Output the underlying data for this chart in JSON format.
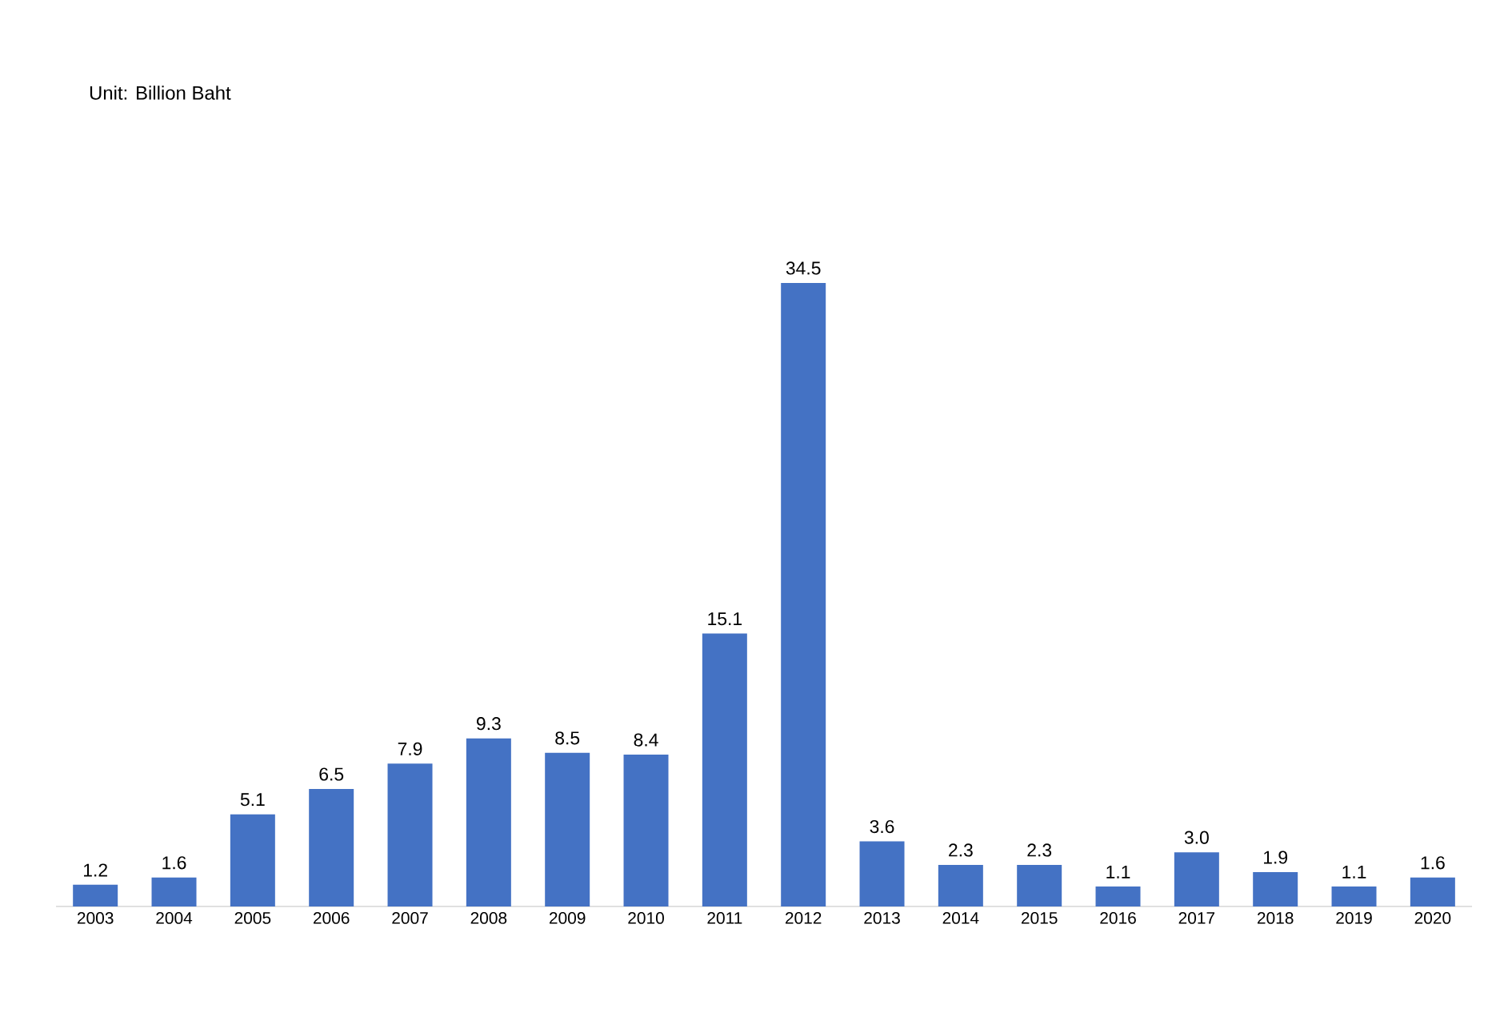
{
  "chart_data": {
    "type": "bar",
    "annotations": [
      "Unit: Billion Baht"
    ],
    "categories": [
      "2003",
      "2004",
      "2005",
      "2006",
      "2007",
      "2008",
      "2009",
      "2010",
      "2011",
      "2012",
      "2013",
      "2014",
      "2015",
      "2016",
      "2017",
      "2018",
      "2019",
      "2020"
    ],
    "values": [
      1.2,
      1.6,
      5.1,
      6.5,
      7.9,
      9.3,
      8.5,
      8.4,
      15.1,
      34.5,
      3.6,
      2.3,
      2.3,
      1.1,
      3.0,
      1.9,
      1.1,
      1.6
    ],
    "value_labels": [
      "1.2",
      "1.6",
      "5.1",
      "6.5",
      "7.9",
      "9.3",
      "8.5",
      "8.4",
      "15.1",
      "34.5",
      "3.6",
      "2.3",
      "2.3",
      "1.1",
      "3.0",
      "1.9",
      "1.1",
      "1.6"
    ],
    "color": "#4472c4"
  }
}
